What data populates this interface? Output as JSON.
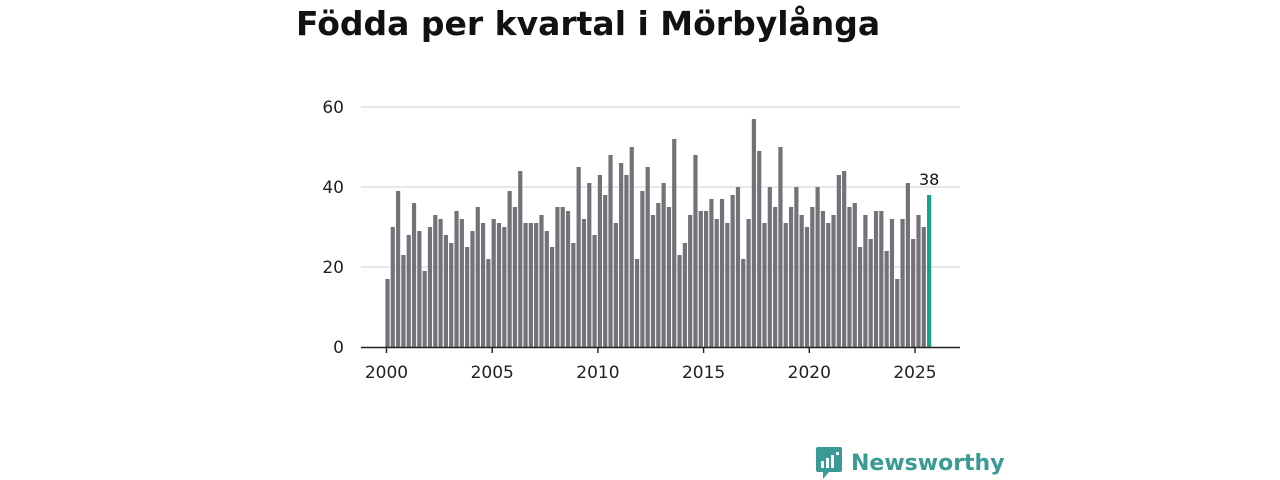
{
  "page": {
    "title": "Födda per kvartal i Mörbylånga"
  },
  "brand": {
    "name": "Newsworthy",
    "icon": "bar-chart-speech-bubble-icon",
    "color": "#3a9b94"
  },
  "chart_data": {
    "type": "bar",
    "title": "Födda per kvartal i Mörbylånga",
    "xlabel": "",
    "ylabel": "",
    "ylim": [
      0,
      60
    ],
    "yticks": [
      0,
      20,
      40,
      60
    ],
    "xticks": [
      2000,
      2005,
      2010,
      2015,
      2020,
      2025
    ],
    "grid": true,
    "bar_color": "#737278",
    "highlight_color": "#1a9e8c",
    "highlight_label": "38",
    "series": [
      {
        "name": "Födda",
        "start_year": 2000,
        "periods_per_year": 4,
        "values": [
          17,
          30,
          39,
          23,
          28,
          36,
          29,
          19,
          30,
          33,
          32,
          28,
          26,
          34,
          32,
          25,
          29,
          35,
          31,
          22,
          32,
          31,
          30,
          39,
          35,
          44,
          31,
          31,
          31,
          33,
          29,
          25,
          35,
          35,
          34,
          26,
          45,
          32,
          41,
          28,
          43,
          38,
          48,
          31,
          46,
          43,
          50,
          22,
          39,
          45,
          33,
          36,
          41,
          35,
          52,
          23,
          26,
          33,
          48,
          34,
          34,
          37,
          32,
          37,
          31,
          38,
          40,
          22,
          32,
          57,
          49,
          31,
          40,
          35,
          50,
          31,
          35,
          40,
          33,
          30,
          35,
          40,
          34,
          31,
          33,
          43,
          44,
          35,
          36,
          25,
          33,
          27,
          34,
          34,
          24,
          32,
          17,
          32,
          41,
          27,
          33,
          30,
          38
        ]
      }
    ]
  }
}
